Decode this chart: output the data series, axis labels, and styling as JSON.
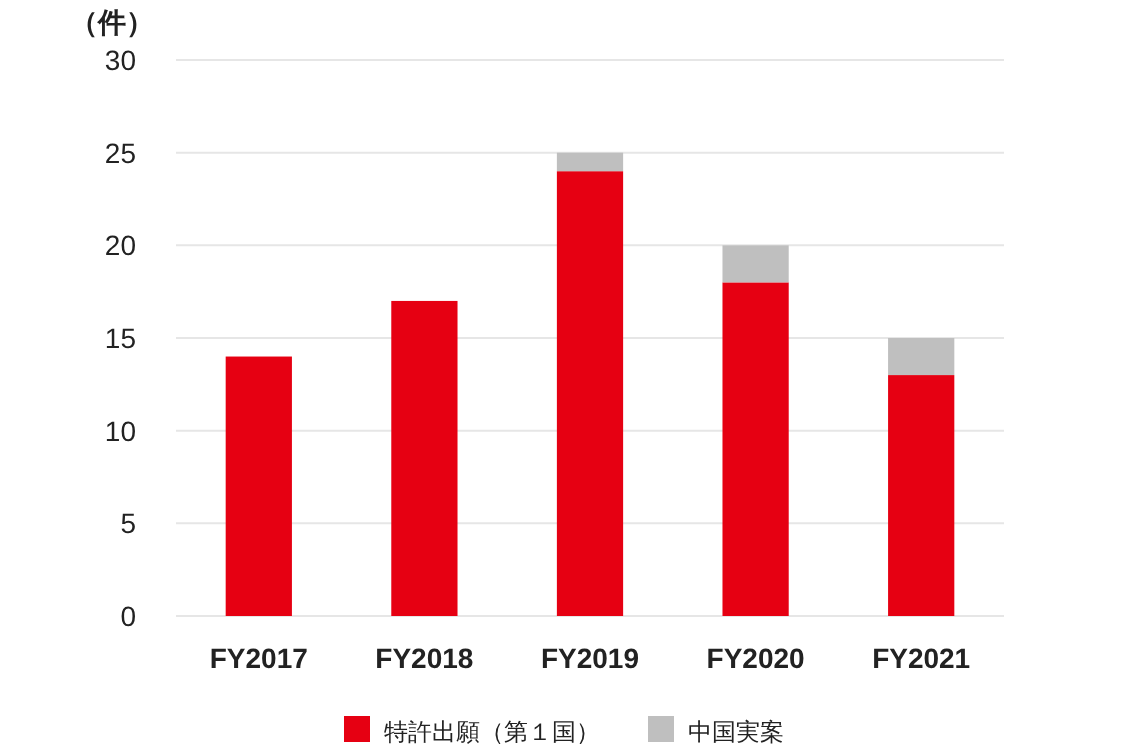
{
  "chart_data": {
    "type": "bar",
    "stacked": true,
    "ylabel": "（件）",
    "categories": [
      "FY2017",
      "FY2018",
      "FY2019",
      "FY2020",
      "FY2021"
    ],
    "series": [
      {
        "name": "特許出願（第１国）",
        "color": "#e60012",
        "values": [
          14,
          17,
          24,
          18,
          13
        ]
      },
      {
        "name": "中国実案",
        "color": "#bfbfbf",
        "values": [
          null,
          null,
          1,
          2,
          2
        ]
      }
    ],
    "ylim": [
      0,
      30
    ],
    "yticks": [
      0,
      5,
      10,
      15,
      20,
      25,
      30
    ],
    "grid": "y",
    "legend": "bottom"
  }
}
